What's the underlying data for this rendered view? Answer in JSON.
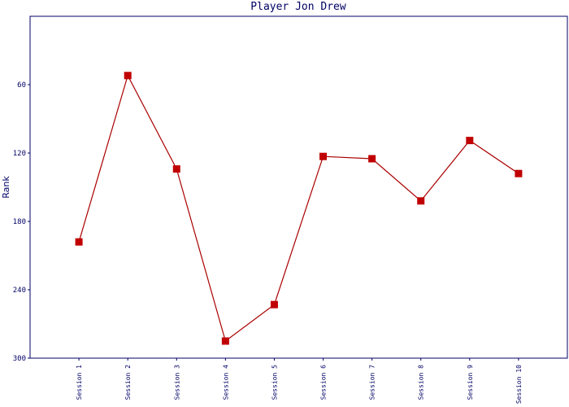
{
  "chart_data": {
    "type": "line",
    "title": "Player Jon Drew",
    "y_label": "Rank",
    "categories": [
      "Session 1",
      "Session 2",
      "Session 3",
      "Session 4",
      "Session 5",
      "Session 6",
      "Session 7",
      "Session 8",
      "Session 9",
      "Session 10"
    ],
    "series": [
      {
        "name": "Rank",
        "color": "#aa0000",
        "marker_color": "#c00000",
        "values": [
          198,
          52,
          134,
          285,
          253,
          123,
          125,
          162,
          109,
          138
        ]
      }
    ],
    "ylim": [
      300,
      0
    ],
    "yticks": [
      60,
      120,
      180,
      240,
      300
    ],
    "grid": false
  }
}
